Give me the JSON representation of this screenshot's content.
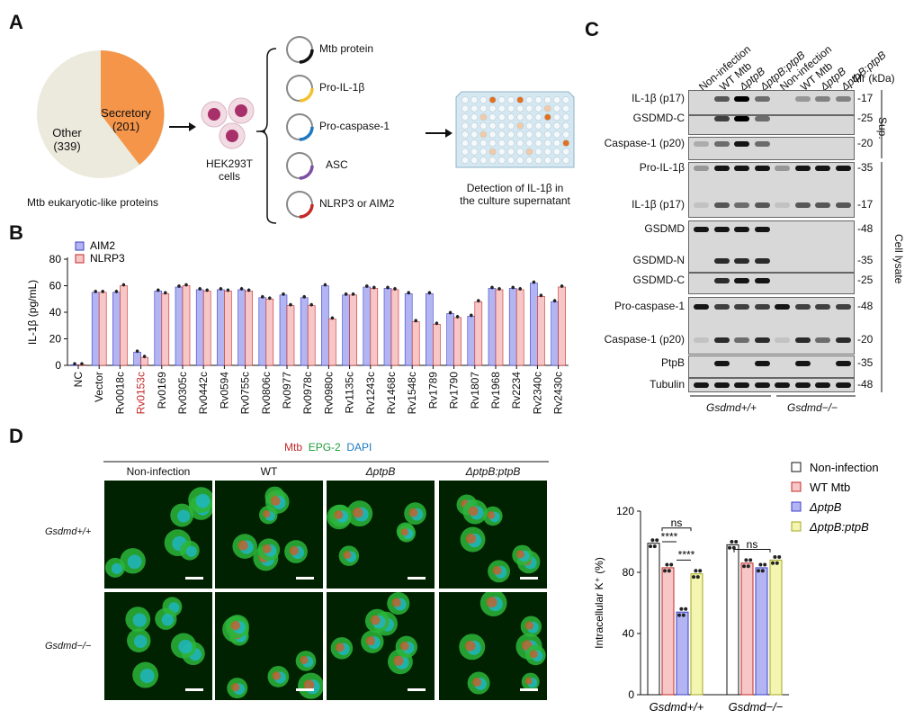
{
  "panel_labels": {
    "a": "A",
    "b": "B",
    "c": "C",
    "d": "D"
  },
  "panel_a": {
    "pie": {
      "secretory": "Secretory\n(201)",
      "secretory_line1": "Secretory",
      "secretory_line2": "(201)",
      "other_line1": "Other",
      "other_line2": "(339)",
      "caption": "Mtb eukaryotic-like proteins",
      "colors": {
        "secretory": "#f4954a",
        "other": "#ece9dd"
      }
    },
    "cells_label_line1": "HEK293T",
    "cells_label_line2": "cells",
    "plasmids": [
      "Mtb protein",
      "Pro-IL-1β",
      "Pro-caspase-1",
      "ASC",
      "NLRP3 or AIM2"
    ],
    "plasmid_colors": [
      "#111111",
      "#f2c12e",
      "#1f78c1",
      "#7b4fa3",
      "#c62828"
    ],
    "detection_line1": "Detection of IL-1β in",
    "detection_line2": "the culture supernatant"
  },
  "chart_data": [
    {
      "type": "bar",
      "ylabel": "IL-1β (pg/mL)",
      "ylim": [
        0,
        80
      ],
      "yticks": [
        0,
        20,
        40,
        60,
        80
      ],
      "legend_placement": "top-left",
      "categories": [
        "NC",
        "Vector",
        "Rv0018c",
        "Rv0153c",
        "Rv0169",
        "Rv0305c",
        "Rv0442c",
        "Rv0594",
        "Rv0755c",
        "Rv0806c",
        "Rv0977",
        "Rv0978c",
        "Rv0980c",
        "Rv1135c",
        "Rv1243c",
        "Rv1468c",
        "Rv1548c",
        "Rv1789",
        "Rv1790",
        "Rv1807",
        "Rv1968",
        "Rv2234",
        "Rv2340c",
        "Rv2430c"
      ],
      "highlight_category": "Rv0153c",
      "highlight_color": "#c62828",
      "series": [
        {
          "name": "AIM2",
          "color": "#b3b5f2",
          "values": [
            0.5,
            55,
            55,
            10,
            56,
            59,
            57,
            57,
            57,
            51,
            53,
            51,
            60,
            53,
            59,
            58,
            54,
            54,
            39,
            37,
            58,
            58,
            62,
            48
          ]
        },
        {
          "name": "NLRP3",
          "color": "#f7c6c6",
          "values": [
            0.5,
            55,
            60,
            6,
            54,
            60,
            56,
            56,
            56,
            50,
            45,
            45,
            35,
            53,
            58,
            57,
            33,
            31,
            36,
            48,
            57,
            57,
            52,
            59
          ]
        }
      ]
    },
    {
      "type": "bar",
      "ylabel": "Intracellular K⁺ (%)",
      "ylim": [
        0,
        120
      ],
      "yticks": [
        0,
        40,
        80,
        120
      ],
      "categories": [
        "Gsdmd+/+",
        "Gsdmd−/−"
      ],
      "legend_placement": "top",
      "series": [
        {
          "name": "Non-infection",
          "color": "#ffffff",
          "values": [
            99,
            98
          ]
        },
        {
          "name": "WT Mtb",
          "color": "#f7c6c6",
          "values": [
            83,
            86
          ]
        },
        {
          "name": "ΔptpB",
          "color": "#b3b5f2",
          "values": [
            54,
            83
          ]
        },
        {
          "name": "ΔptpB:ptpB",
          "color": "#f3f5b0",
          "values": [
            79,
            88
          ]
        }
      ],
      "annotations": [
        "ns",
        "****",
        "****",
        "ns"
      ]
    }
  ],
  "panel_c": {
    "lanes": [
      "Non-infection",
      "WT Mtb",
      "ΔptpB",
      "ΔptpB:ptpB",
      "Non-infection",
      "WT Mtb",
      "ΔptpB",
      "ΔptpB:ptpB"
    ],
    "mr_label": "Mr (kDa)",
    "groups": [
      "Gsdmd+/+",
      "Gsdmd−/−"
    ],
    "sections": {
      "sup": "Sup.",
      "lysate": "Cell lysate"
    },
    "blots": [
      {
        "label": "IL-1β (p17)",
        "mw": "17"
      },
      {
        "label": "GSDMD-C",
        "mw": "25"
      },
      {
        "label": "Caspase-1 (p20)",
        "mw": "20"
      },
      {
        "label": "Pro-IL-1β",
        "mw": "35"
      },
      {
        "label": "IL-1β (p17)",
        "mw": "17"
      },
      {
        "label": "GSDMD",
        "mw": "48"
      },
      {
        "label": "GSDMD-N",
        "mw": "35"
      },
      {
        "label": "GSDMD-C",
        "mw": "25"
      },
      {
        "label": "Pro-caspase-1",
        "mw": "48"
      },
      {
        "label": "Caspase-1 (p20)",
        "mw": "20"
      },
      {
        "label": "PtpB",
        "mw": "35"
      },
      {
        "label": "Tubulin",
        "mw": "48"
      }
    ]
  },
  "panel_d": {
    "stain_mtb": "Mtb",
    "stain_epg": "EPG-2",
    "stain_dapi": "DAPI",
    "columns": [
      "Non-infection",
      "WT",
      "ΔptpB",
      "ΔptpB:ptpB"
    ],
    "rows": [
      "Gsdmd+/+",
      "Gsdmd−/−"
    ]
  }
}
